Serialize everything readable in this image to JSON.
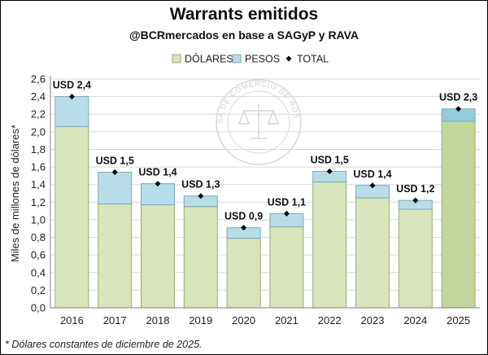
{
  "chart_data": {
    "type": "bar",
    "stacked": true,
    "title": "Warrants emitidos",
    "subtitle": "@BCRmercados en base a SAGyP y RAVA",
    "ylabel": "Miles de millones de dólares*",
    "xlabel": "",
    "ylim": [
      0,
      2.6
    ],
    "yticks": [
      "0,0",
      "0,2",
      "0,4",
      "0,6",
      "0,8",
      "1,0",
      "1,2",
      "1,4",
      "1,6",
      "1,8",
      "2,0",
      "2,2",
      "2,4",
      "2,6"
    ],
    "ytick_values": [
      0,
      0.2,
      0.4,
      0.6,
      0.8,
      1.0,
      1.2,
      1.4,
      1.6,
      1.8,
      2.0,
      2.2,
      2.4,
      2.6
    ],
    "grid": true,
    "legend_position": "top-right",
    "categories": [
      "2016",
      "2017",
      "2018",
      "2019",
      "2020",
      "2021",
      "2022",
      "2023",
      "2024",
      "2025"
    ],
    "series": [
      {
        "name": "DÓLARES",
        "values": [
          2.06,
          1.18,
          1.17,
          1.15,
          0.79,
          0.92,
          1.43,
          1.25,
          1.12,
          2.12
        ]
      },
      {
        "name": "PESOS",
        "values": [
          0.34,
          0.36,
          0.24,
          0.12,
          0.12,
          0.15,
          0.12,
          0.14,
          0.1,
          0.14
        ]
      }
    ],
    "total": {
      "name": "TOTAL",
      "values": [
        2.4,
        1.54,
        1.41,
        1.27,
        0.91,
        1.07,
        1.55,
        1.39,
        1.22,
        2.26
      ]
    },
    "data_labels": [
      "USD 2,4",
      "USD 1,5",
      "USD 1,4",
      "USD 1,3",
      "USD 0,9",
      "USD 1,1",
      "USD 1,5",
      "USD 1,4",
      "USD 1,2",
      "USD 2,3"
    ],
    "highlight_category": "2025",
    "footnote": "* Dólares constantes de diciembre de 2025.",
    "watermark": "BOLSA DE COMERCIO DE ROSARIO",
    "colors": {
      "dolares": "#d8e4bc",
      "dolares_border": "#9bad76",
      "pesos": "#b7dee8",
      "pesos_border": "#7aaab8",
      "dolares_highlight": "#c3d69b",
      "pesos_highlight": "#93cddd",
      "total_marker": "#000000",
      "grid": "#d9d9d9",
      "axis": "#7f7f7f",
      "text": "#222222"
    }
  }
}
